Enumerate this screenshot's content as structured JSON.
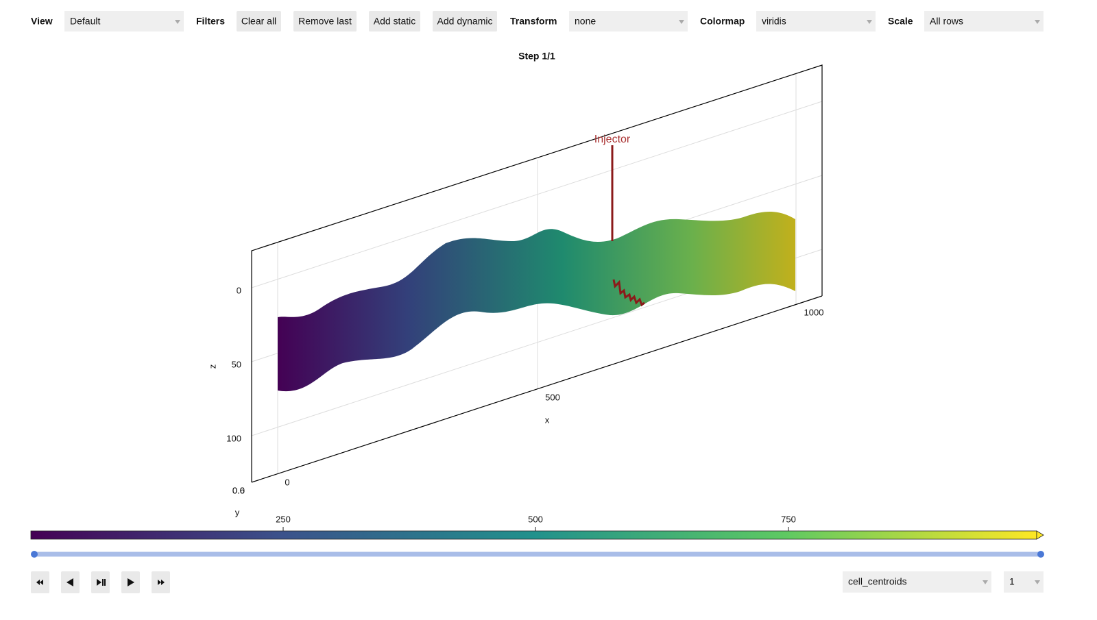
{
  "toolbar": {
    "view_label": "View",
    "view_value": "Default",
    "filters_label": "Filters",
    "buttons": [
      "Clear all",
      "Remove last",
      "Add static",
      "Add dynamic"
    ],
    "transform_label": "Transform",
    "transform_value": "none",
    "colormap_label": "Colormap",
    "colormap_value": "viridis",
    "scale_label": "Scale",
    "scale_value": "All rows"
  },
  "plot": {
    "title": "Step 1/1",
    "annotation": "Injector",
    "x_axis": {
      "label": "x",
      "ticks": [
        0,
        500,
        1000
      ]
    },
    "y_axis": {
      "label": "y",
      "ticks": [
        "0.0",
        "0.6"
      ]
    },
    "z_axis": {
      "label": "z",
      "ticks": [
        0,
        50,
        100
      ]
    },
    "colorbar_ticks": [
      250,
      500,
      750
    ]
  },
  "controls": {
    "field_value": "cell_centroids",
    "index_value": "1"
  }
}
